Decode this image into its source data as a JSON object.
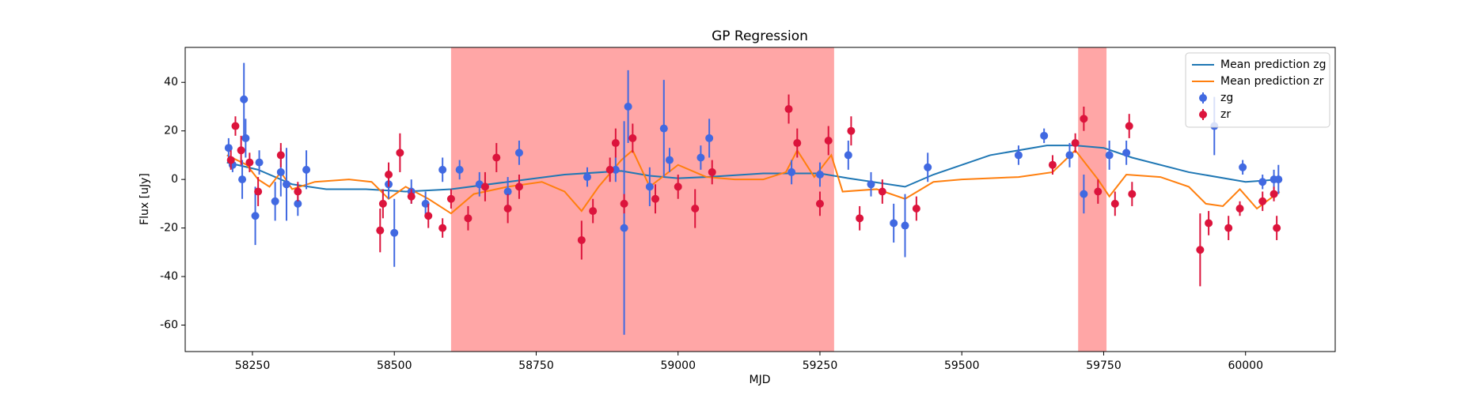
{
  "chart_data": {
    "type": "scatter",
    "title": "GP Regression",
    "x_label": "MJD",
    "y_label": "Flux [uJy]",
    "xlim": [
      58131.5,
      60158
    ],
    "ylim": [
      -70.9,
      54.4
    ],
    "xticks": [
      58250,
      58500,
      58750,
      59000,
      59250,
      59500,
      59750,
      60000
    ],
    "yticks": [
      -60,
      -40,
      -20,
      0,
      20,
      40
    ],
    "legend": "upper right",
    "spans": [
      {
        "x": [
          58600,
          59275
        ],
        "color": "#ff5c5c"
      },
      {
        "x": [
          59705,
          59755
        ],
        "color": "#ff5c5c"
      }
    ],
    "lines": [
      {
        "name": "Mean prediction zg",
        "color": "#1f77b4",
        "x": [
          58205,
          58260,
          58320,
          58380,
          58450,
          58520,
          58600,
          58700,
          58800,
          58900,
          58950,
          59000,
          59050,
          59150,
          59250,
          59300,
          59400,
          59450,
          59550,
          59650,
          59700,
          59750,
          59800,
          59900,
          60000,
          60060
        ],
        "values": [
          7,
          4,
          -2,
          -4,
          -4,
          -5,
          -4,
          -1,
          2,
          3.5,
          1.5,
          0.5,
          1,
          2.5,
          2.5,
          0.5,
          -3,
          2,
          10,
          14,
          14,
          13,
          9,
          3,
          -1,
          0
        ]
      },
      {
        "name": "Mean prediction zr",
        "color": "#ff7f0e",
        "x": [
          58205,
          58240,
          58260,
          58280,
          58300,
          58320,
          58360,
          58420,
          58460,
          58490,
          58520,
          58560,
          58600,
          58640,
          58700,
          58760,
          58800,
          58830,
          58860,
          58900,
          58920,
          58950,
          59000,
          59050,
          59100,
          59150,
          59190,
          59210,
          59240,
          59270,
          59290,
          59350,
          59400,
          59450,
          59500,
          59600,
          59660,
          59700,
          59740,
          59760,
          59790,
          59850,
          59900,
          59930,
          59960,
          59990,
          60020,
          60060
        ],
        "values": [
          10,
          6,
          0,
          -3,
          3,
          -4,
          -1,
          0,
          -1,
          -8,
          -3,
          -8,
          -14,
          -6,
          -3,
          -1,
          -5,
          -13,
          -3,
          8,
          12,
          -3,
          6,
          1,
          0,
          0,
          3,
          12,
          1,
          10,
          -5,
          -4,
          -8,
          -1,
          0,
          1,
          3,
          12,
          0,
          -7,
          2,
          1,
          -3,
          -10,
          -11,
          -4,
          -12,
          -5
        ]
      }
    ],
    "series": [
      {
        "name": "zg",
        "color": "#4169e1",
        "x": [
          58208,
          58215,
          58232,
          58235,
          58238,
          58255,
          58262,
          58290,
          58300,
          58310,
          58330,
          58345,
          58490,
          58500,
          58530,
          58555,
          58585,
          58615,
          58650,
          58700,
          58720,
          58840,
          58890,
          58905,
          58912,
          58950,
          58975,
          58985,
          59040,
          59055,
          59200,
          59250,
          59300,
          59340,
          59380,
          59400,
          59440,
          59600,
          59645,
          59690,
          59715,
          59760,
          59790,
          59945,
          59995,
          60030,
          60050,
          60058
        ],
        "values": [
          13,
          6,
          0,
          33,
          17,
          -15,
          7,
          -9,
          3,
          -2,
          -10,
          4,
          -2,
          -22,
          -5,
          -10,
          4,
          4,
          -2,
          -5,
          11,
          1,
          4,
          -20,
          30,
          -3,
          21,
          8,
          9,
          17,
          3,
          2,
          10,
          -2,
          -18,
          -19,
          5,
          10,
          18,
          10,
          -6,
          10,
          11,
          22,
          5,
          -1,
          0,
          0
        ],
        "errors": [
          4,
          3,
          8,
          15,
          8,
          12,
          5,
          8,
          10,
          15,
          5,
          8,
          6,
          14,
          5,
          5,
          5,
          4,
          5,
          6,
          5,
          4,
          5,
          44,
          15,
          8,
          20,
          5,
          5,
          8,
          5,
          5,
          6,
          5,
          8,
          13,
          6,
          4,
          3,
          5,
          8,
          6,
          5,
          12,
          3,
          3,
          4,
          6
        ]
      },
      {
        "name": "zr",
        "color": "#dc143c",
        "x": [
          58212,
          58220,
          58230,
          58245,
          58260,
          58300,
          58330,
          58475,
          58480,
          58490,
          58510,
          58530,
          58560,
          58585,
          58600,
          58630,
          58660,
          58680,
          58700,
          58720,
          58830,
          58850,
          58880,
          58890,
          58905,
          58920,
          58960,
          59000,
          59030,
          59060,
          59195,
          59210,
          59250,
          59265,
          59305,
          59320,
          59360,
          59420,
          59660,
          59700,
          59715,
          59740,
          59770,
          59795,
          59800,
          59920,
          59935,
          59970,
          59990,
          60030,
          60050,
          60055
        ],
        "values": [
          8,
          22,
          12,
          7,
          -5,
          10,
          -5,
          -21,
          -10,
          2,
          11,
          -7,
          -15,
          -20,
          -8,
          -16,
          -3,
          9,
          -12,
          -3,
          -25,
          -13,
          4,
          15,
          -10,
          17,
          -8,
          -3,
          -12,
          3,
          29,
          15,
          -10,
          16,
          20,
          -16,
          -5,
          -12,
          6,
          15,
          25,
          -5,
          -10,
          22,
          -6,
          -29,
          -18,
          -20,
          -12,
          -9,
          -6,
          -20
        ],
        "errors": [
          4,
          4,
          6,
          4,
          6,
          5,
          4,
          9,
          6,
          5,
          8,
          3,
          5,
          4,
          4,
          5,
          6,
          6,
          6,
          5,
          8,
          5,
          5,
          6,
          4,
          6,
          6,
          5,
          8,
          5,
          6,
          6,
          5,
          6,
          6,
          5,
          5,
          5,
          4,
          4,
          5,
          5,
          5,
          5,
          5,
          15,
          5,
          5,
          3,
          4,
          3,
          5
        ]
      }
    ]
  }
}
